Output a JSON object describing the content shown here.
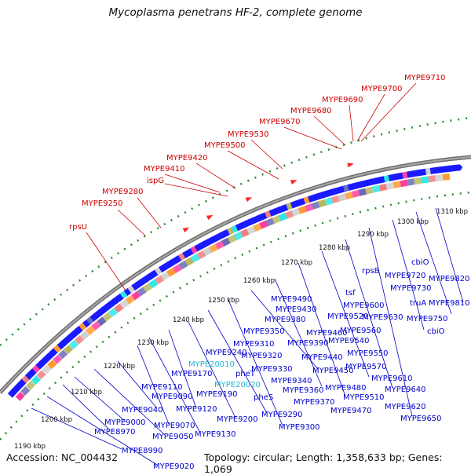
{
  "title": "Mycoplasma penetrans HF-2, complete genome",
  "footer": {
    "accession": "Accession: NC_004432",
    "topology": "Topology: circular; Length: 1,358,633 bp; Genes: 1,069"
  },
  "colors": {
    "backbone": "#6f6f6f",
    "forward_gene": "#1a1aff",
    "reverse_gene": "#1a1aff",
    "rna_gene": "#ff2222",
    "ring_dots": "#2a8a2a",
    "label_red": "#cc0000",
    "label_blue": "#0000cc",
    "label_cyan": "#22b5cf"
  },
  "ticks": [
    "1190 kbp",
    "1200 kbp",
    "1210 kbp",
    "1220 kbp",
    "1230 kbp",
    "1240 kbp",
    "1250 kbp",
    "1260 kbp",
    "1270 kbp",
    "1280 kbp",
    "1290 kbp",
    "1300 kbp",
    "1310 kbp"
  ],
  "red_labels": [
    "rpsU",
    "MYPE9250",
    "MYPE9280",
    "MYPE9410",
    "ispG",
    "MYPE9420",
    "MYPE9500",
    "MYPE9530",
    "MYPE9670",
    "MYPE9680",
    "MYPE9690",
    "MYPE9700",
    "MYPE9710"
  ],
  "blue_labels": [
    "MYPE8990",
    "MYPE9020",
    "MYPE8970",
    "MYPE9000",
    "MYPE9050",
    "MYPE9040",
    "MYPE9070",
    "MYPE9130",
    "MYPE9120",
    "MYPE9090",
    "MYPE9110",
    "MYPE9200",
    "MYPE9190",
    "MYPE9170",
    "MYPE9240",
    "MYPE9290",
    "MYPE9300",
    "pheS",
    "pheT",
    "MYPE9320",
    "MYPE9310",
    "MYPE9330",
    "MYPE9350",
    "MYPE9380",
    "MYPE9340",
    "MYPE9360",
    "MYPE9370",
    "MYPE9390",
    "MYPE9430",
    "MYPE9490",
    "MYPE9460",
    "MYPE9450",
    "MYPE9440",
    "MYPE9480",
    "MYPE9470",
    "MYPE9510",
    "tsf",
    "MYPE9520",
    "MYPE9600",
    "MYPE9560",
    "MYPE9540",
    "MYPE9550",
    "MYPE9570",
    "MYPE9610",
    "MYPE9640",
    "MYPE9620",
    "MYPE9650",
    "rpsB",
    "MYPE9630",
    "MYPE9720",
    "MYPE9730",
    "truA",
    "MYPE9750",
    "cbiO",
    "cbiO",
    "MYPE9820",
    "MYPE9810"
  ],
  "cyan_labels": [
    "MYPE20010",
    "MYPE20020"
  ]
}
